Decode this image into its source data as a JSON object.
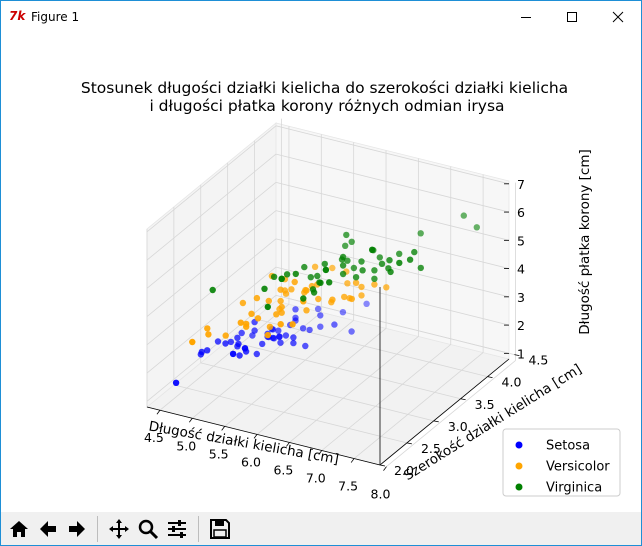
{
  "window": {
    "title": "Figure 1",
    "app_icon": "tk-feather-icon",
    "controls": [
      "minimize-icon",
      "maximize-icon",
      "close-icon"
    ]
  },
  "toolbar": {
    "buttons": [
      "home-icon",
      "back-arrow-icon",
      "forward-arrow-icon",
      "pan-icon",
      "zoom-icon",
      "subplots-config-icon",
      "save-icon"
    ]
  },
  "chart_data": {
    "type": "scatter",
    "projection": "3d",
    "title": "Stosunek długości działki kielicha do szerokości działki kielicha\ni długości płatka korony różnych odmian irysa",
    "xlabel": "Długość działki kielicha [cm]",
    "ylabel": "Szerokość działki kielicha [cm]",
    "zlabel": "Długość płatka korony [cm]",
    "xticks": [
      "4.5",
      "5.0",
      "5.5",
      "6.0",
      "6.5",
      "7.0",
      "7.5",
      "8.0"
    ],
    "yticks": [
      "2.0",
      "2.5",
      "3.0",
      "3.5",
      "4.0",
      "4.5"
    ],
    "zticks": [
      "1",
      "2",
      "3",
      "4",
      "5",
      "6",
      "7"
    ],
    "xlim": [
      4.3,
      7.9
    ],
    "ylim": [
      2.0,
      4.4
    ],
    "zlim": [
      1.0,
      6.9
    ],
    "grid": true,
    "legend_position": "lower-right",
    "series": [
      {
        "name": "Setosa",
        "color": "#0000ff",
        "points": [
          [
            5.1,
            3.5,
            1.4
          ],
          [
            4.9,
            3.0,
            1.4
          ],
          [
            4.7,
            3.2,
            1.3
          ],
          [
            4.6,
            3.1,
            1.5
          ],
          [
            5.0,
            3.6,
            1.4
          ],
          [
            5.4,
            3.9,
            1.7
          ],
          [
            4.6,
            3.4,
            1.4
          ],
          [
            5.0,
            3.4,
            1.5
          ],
          [
            4.4,
            2.9,
            1.4
          ],
          [
            4.9,
            3.1,
            1.5
          ],
          [
            5.4,
            3.7,
            1.5
          ],
          [
            4.8,
            3.4,
            1.6
          ],
          [
            4.8,
            3.0,
            1.4
          ],
          [
            4.3,
            3.0,
            1.1
          ],
          [
            5.8,
            4.0,
            1.2
          ],
          [
            5.7,
            4.4,
            1.5
          ],
          [
            5.4,
            3.9,
            1.3
          ],
          [
            5.1,
            3.5,
            1.4
          ],
          [
            5.7,
            3.8,
            1.7
          ],
          [
            5.1,
            3.8,
            1.5
          ],
          [
            5.4,
            3.4,
            1.7
          ],
          [
            5.1,
            3.7,
            1.5
          ],
          [
            4.6,
            3.6,
            1.0
          ],
          [
            5.1,
            3.3,
            1.7
          ],
          [
            4.8,
            3.4,
            1.9
          ],
          [
            5.0,
            3.0,
            1.6
          ],
          [
            5.0,
            3.4,
            1.6
          ],
          [
            5.2,
            3.5,
            1.5
          ],
          [
            5.2,
            3.4,
            1.4
          ],
          [
            4.7,
            3.2,
            1.6
          ],
          [
            4.8,
            3.1,
            1.6
          ],
          [
            5.4,
            3.4,
            1.5
          ],
          [
            5.2,
            4.1,
            1.5
          ],
          [
            5.5,
            4.2,
            1.4
          ],
          [
            4.9,
            3.1,
            1.5
          ],
          [
            5.0,
            3.2,
            1.2
          ],
          [
            5.5,
            3.5,
            1.3
          ],
          [
            4.9,
            3.6,
            1.4
          ],
          [
            4.4,
            3.0,
            1.3
          ],
          [
            5.1,
            3.4,
            1.5
          ],
          [
            5.0,
            3.5,
            1.3
          ],
          [
            4.5,
            2.3,
            1.3
          ],
          [
            4.4,
            3.2,
            1.3
          ],
          [
            5.0,
            3.5,
            1.6
          ],
          [
            5.1,
            3.8,
            1.9
          ],
          [
            4.8,
            3.0,
            1.4
          ],
          [
            5.1,
            3.8,
            1.6
          ],
          [
            4.6,
            3.2,
            1.4
          ],
          [
            5.3,
            3.7,
            1.5
          ],
          [
            5.0,
            3.3,
            1.4
          ]
        ]
      },
      {
        "name": "Versicolor",
        "color": "#ffa500",
        "points": [
          [
            7.0,
            3.2,
            4.7
          ],
          [
            6.4,
            3.2,
            4.5
          ],
          [
            6.9,
            3.1,
            4.9
          ],
          [
            5.5,
            2.3,
            4.0
          ],
          [
            6.5,
            2.8,
            4.6
          ],
          [
            5.7,
            2.8,
            4.5
          ],
          [
            6.3,
            3.3,
            4.7
          ],
          [
            4.9,
            2.4,
            3.3
          ],
          [
            6.6,
            2.9,
            4.6
          ],
          [
            5.2,
            2.7,
            3.9
          ],
          [
            5.0,
            2.0,
            3.5
          ],
          [
            5.9,
            3.0,
            4.2
          ],
          [
            6.0,
            2.2,
            4.0
          ],
          [
            6.1,
            2.9,
            4.7
          ],
          [
            5.6,
            2.9,
            3.6
          ],
          [
            6.7,
            3.1,
            4.4
          ],
          [
            5.6,
            3.0,
            4.5
          ],
          [
            5.8,
            2.7,
            4.1
          ],
          [
            6.2,
            2.2,
            4.5
          ],
          [
            5.6,
            2.5,
            3.9
          ],
          [
            5.9,
            3.2,
            4.8
          ],
          [
            6.1,
            2.8,
            4.0
          ],
          [
            6.3,
            2.5,
            4.9
          ],
          [
            6.1,
            2.8,
            4.7
          ],
          [
            6.4,
            2.9,
            4.3
          ],
          [
            6.6,
            3.0,
            4.4
          ],
          [
            6.8,
            2.8,
            4.8
          ],
          [
            6.7,
            3.0,
            5.0
          ],
          [
            6.0,
            2.9,
            4.5
          ],
          [
            5.7,
            2.6,
            3.5
          ],
          [
            5.5,
            2.4,
            3.8
          ],
          [
            5.5,
            2.4,
            3.7
          ],
          [
            5.8,
            2.7,
            3.9
          ],
          [
            6.0,
            2.7,
            5.1
          ],
          [
            5.4,
            3.0,
            4.5
          ],
          [
            6.0,
            3.4,
            4.5
          ],
          [
            6.7,
            3.1,
            4.7
          ],
          [
            6.3,
            2.3,
            4.4
          ],
          [
            5.6,
            3.0,
            4.1
          ],
          [
            5.5,
            2.5,
            4.0
          ],
          [
            5.5,
            2.6,
            4.4
          ],
          [
            6.1,
            3.0,
            4.6
          ],
          [
            5.8,
            2.6,
            4.0
          ],
          [
            5.0,
            2.3,
            3.3
          ],
          [
            5.6,
            2.7,
            4.2
          ],
          [
            5.7,
            3.0,
            4.2
          ],
          [
            5.7,
            2.9,
            4.2
          ],
          [
            6.2,
            2.9,
            4.3
          ],
          [
            5.1,
            2.5,
            3.0
          ],
          [
            5.7,
            2.8,
            4.1
          ]
        ]
      },
      {
        "name": "Virginica",
        "color": "#008000",
        "points": [
          [
            6.3,
            3.3,
            6.0
          ],
          [
            5.8,
            2.7,
            5.1
          ],
          [
            7.1,
            3.0,
            5.9
          ],
          [
            6.3,
            2.9,
            5.6
          ],
          [
            6.5,
            3.0,
            5.8
          ],
          [
            7.6,
            3.0,
            6.6
          ],
          [
            4.9,
            2.5,
            4.5
          ],
          [
            7.3,
            2.9,
            6.3
          ],
          [
            6.7,
            2.5,
            5.8
          ],
          [
            7.2,
            3.6,
            6.1
          ],
          [
            6.5,
            3.2,
            5.1
          ],
          [
            6.4,
            2.7,
            5.3
          ],
          [
            6.8,
            3.0,
            5.5
          ],
          [
            5.7,
            2.5,
            5.0
          ],
          [
            5.8,
            2.8,
            5.1
          ],
          [
            6.4,
            3.2,
            5.3
          ],
          [
            6.5,
            3.0,
            5.5
          ],
          [
            7.7,
            3.8,
            6.7
          ],
          [
            7.7,
            2.6,
            6.9
          ],
          [
            6.0,
            2.2,
            5.0
          ],
          [
            6.9,
            3.2,
            5.7
          ],
          [
            5.6,
            2.8,
            4.9
          ],
          [
            7.7,
            2.8,
            6.7
          ],
          [
            6.3,
            2.7,
            4.9
          ],
          [
            6.7,
            3.3,
            5.7
          ],
          [
            7.2,
            3.2,
            6.0
          ],
          [
            6.2,
            2.8,
            4.8
          ],
          [
            6.1,
            3.0,
            4.9
          ],
          [
            6.4,
            2.8,
            5.6
          ],
          [
            7.2,
            3.0,
            5.8
          ],
          [
            7.4,
            2.8,
            6.1
          ],
          [
            7.9,
            3.8,
            6.4
          ],
          [
            6.4,
            2.8,
            5.6
          ],
          [
            6.3,
            2.8,
            5.1
          ],
          [
            6.1,
            2.6,
            5.6
          ],
          [
            7.7,
            3.0,
            6.1
          ],
          [
            6.3,
            3.4,
            5.6
          ],
          [
            6.4,
            3.1,
            5.5
          ],
          [
            6.0,
            3.0,
            4.8
          ],
          [
            6.9,
            3.1,
            5.4
          ],
          [
            6.7,
            3.1,
            5.6
          ],
          [
            6.9,
            3.1,
            5.1
          ],
          [
            5.8,
            2.7,
            5.1
          ],
          [
            6.8,
            3.2,
            5.9
          ],
          [
            6.7,
            3.3,
            5.7
          ],
          [
            6.7,
            3.0,
            5.2
          ],
          [
            6.3,
            2.5,
            5.0
          ],
          [
            6.5,
            3.0,
            5.2
          ],
          [
            6.2,
            3.4,
            5.4
          ],
          [
            5.9,
            3.0,
            5.1
          ]
        ]
      }
    ]
  }
}
